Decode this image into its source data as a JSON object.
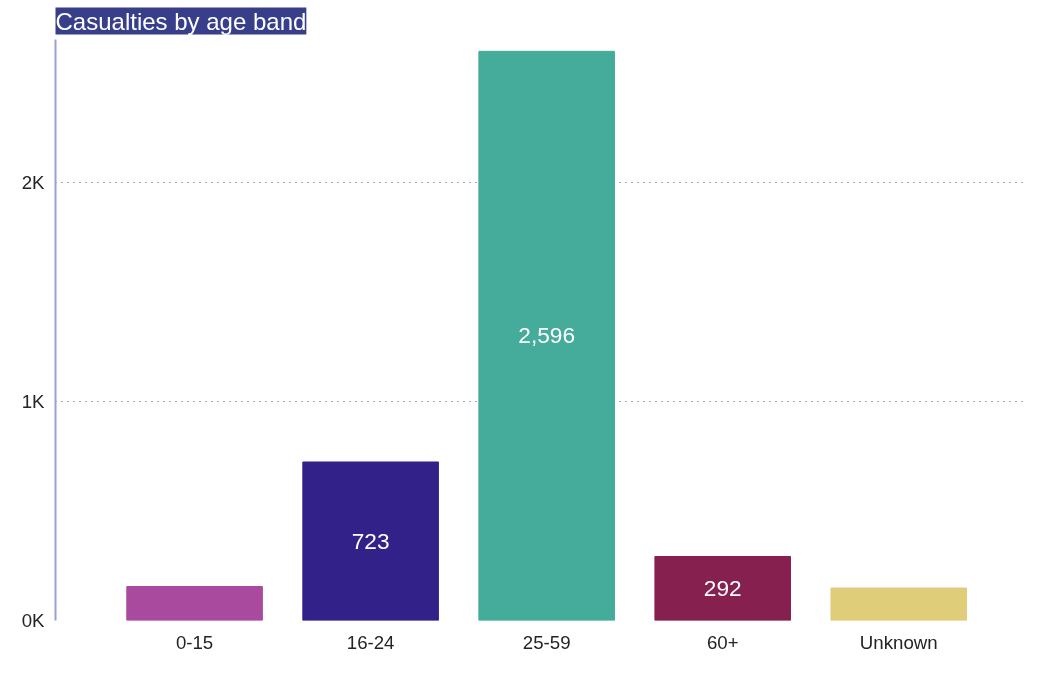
{
  "chart_data": {
    "type": "bar",
    "title": "Casualties by age band",
    "categories": [
      "0-15",
      "16-24",
      "25-59",
      "60+",
      "Unknown"
    ],
    "values": [
      155,
      723,
      2596,
      292,
      148
    ],
    "colors": [
      "#a94a9f",
      "#33218a",
      "#45ab9b",
      "#86204f",
      "#dfcd7a"
    ],
    "value_labels": [
      null,
      "723",
      "2,596",
      "292",
      null
    ],
    "ylim": [
      0,
      2650
    ],
    "yticks": [
      {
        "value": 0,
        "label": "0K"
      },
      {
        "value": 1000,
        "label": "1K"
      },
      {
        "value": 2000,
        "label": "2K"
      }
    ],
    "grid": "y"
  }
}
